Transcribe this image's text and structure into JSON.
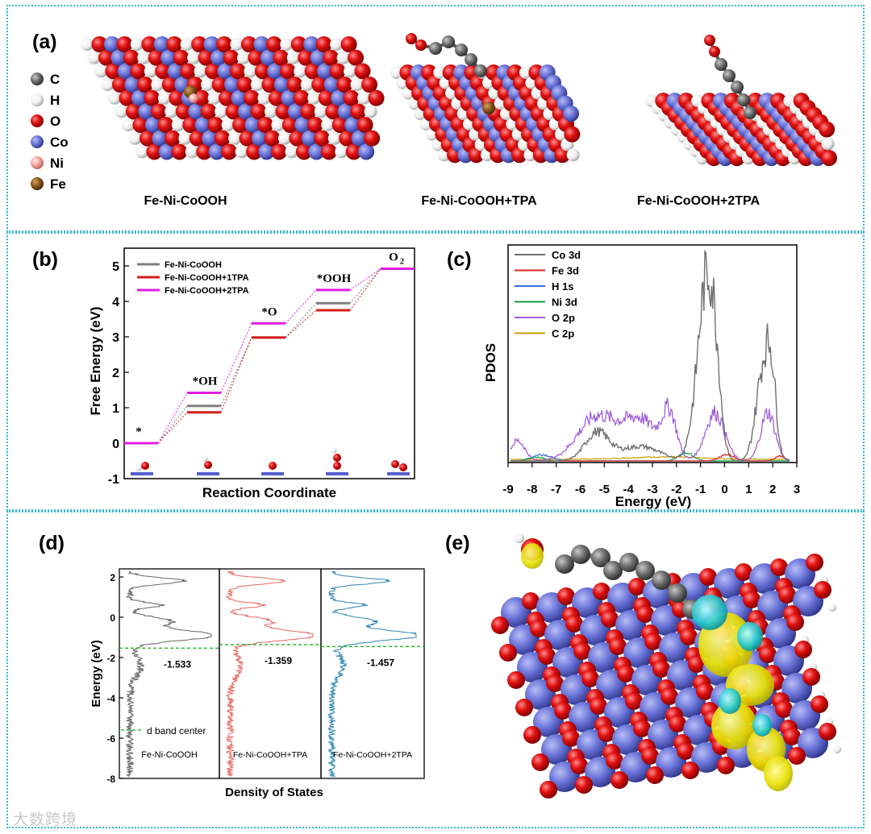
{
  "panel_labels": {
    "a": "(a)",
    "b": "(b)",
    "c": "(c)",
    "d": "(d)",
    "e": "(e)"
  },
  "legend_atoms": [
    {
      "symbol": "C",
      "color": "#6f6f6f"
    },
    {
      "symbol": "H",
      "color": "#f2f2f2"
    },
    {
      "symbol": "O",
      "color": "#e01010"
    },
    {
      "symbol": "Co",
      "color": "#6a74d8"
    },
    {
      "symbol": "Ni",
      "color": "#f3a6a0"
    },
    {
      "symbol": "Fe",
      "color": "#8a5a1c"
    }
  ],
  "structure_captions": [
    "Fe-Ni-CoOOH",
    "Fe-Ni-CoOOH+TPA",
    "Fe-Ni-CoOOH+2TPA"
  ],
  "chart_data": [
    {
      "id": "b",
      "type": "line",
      "title": "",
      "xlabel": "Reaction Coordinate",
      "ylabel": "Free Energy (eV)",
      "ylim": [
        -1,
        5.5
      ],
      "yticks": [
        "-1",
        "0",
        "1",
        "2",
        "3",
        "4",
        "5"
      ],
      "steps": [
        "*",
        "*OH",
        "*O",
        "*OOH",
        "O2"
      ],
      "series": [
        {
          "name": "Fe-Ni-CoOOH",
          "color": "#808080",
          "values": [
            0,
            1.05,
            2.98,
            3.95,
            4.92
          ]
        },
        {
          "name": "Fe-Ni-CoOOH+1TPA",
          "color": "#d81b1b",
          "values": [
            0,
            0.87,
            2.98,
            3.75,
            4.92
          ]
        },
        {
          "name": "Fe-Ni-CoOOH+2TPA",
          "color": "#e31be3",
          "values": [
            0,
            1.42,
            3.38,
            4.32,
            4.92
          ]
        }
      ]
    },
    {
      "id": "c",
      "type": "line",
      "xlabel": "Energy (eV)",
      "ylabel": "PDOS",
      "xlim": [
        -9,
        3
      ],
      "xticks": [
        "-9",
        "-8",
        "-7",
        "-6",
        "-5",
        "-4",
        "-3",
        "-2",
        "-1",
        "0",
        "1",
        "2",
        "3"
      ],
      "series": [
        {
          "name": "Co 3d",
          "color": "#707070"
        },
        {
          "name": "Fe 3d",
          "color": "#e02020"
        },
        {
          "name": "H 1s",
          "color": "#3070e0"
        },
        {
          "name": "Ni 3d",
          "color": "#10a040"
        },
        {
          "name": "O 2p",
          "color": "#a060d8"
        },
        {
          "name": "C 2p",
          "color": "#c8a000"
        }
      ]
    },
    {
      "id": "d",
      "type": "line",
      "xlabel": "Density of States",
      "ylabel": "Energy (eV)",
      "ylim": [
        -8,
        2.4
      ],
      "yticks": [
        "2",
        "0",
        "-2",
        "-4",
        "-6",
        "-8"
      ],
      "legend": "d band center",
      "series": [
        {
          "name": "Fe-Ni-CoOOH",
          "color": "#6e6e6e",
          "d_band_center": -1.533,
          "label": "-1.533"
        },
        {
          "name": "Fe-Ni-CoOOH+TPA",
          "color": "#e8706a",
          "d_band_center": -1.359,
          "label": "-1.359"
        },
        {
          "name": "Fe-Ni-CoOOH+2TPA",
          "color": "#3c8fb6",
          "d_band_center": -1.457,
          "label": "-1.457"
        }
      ]
    }
  ],
  "watermark": "大数跨境"
}
